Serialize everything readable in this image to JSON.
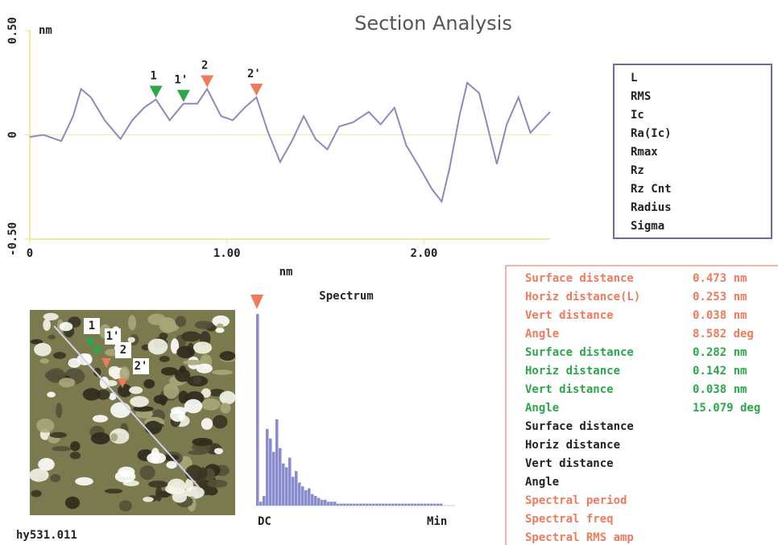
{
  "title": "Section Analysis",
  "chart_data": {
    "type": "line",
    "y_unit": "nm",
    "xlabel": "nm",
    "x": [
      0,
      0.07,
      0.16,
      0.22,
      0.26,
      0.31,
      0.38,
      0.46,
      0.52,
      0.58,
      0.64,
      0.71,
      0.78,
      0.85,
      0.9,
      0.97,
      1.03,
      1.09,
      1.15,
      1.21,
      1.27,
      1.33,
      1.39,
      1.45,
      1.51,
      1.57,
      1.64,
      1.72,
      1.78,
      1.85,
      1.91,
      1.98,
      2.04,
      2.09,
      2.13,
      2.18,
      2.22,
      2.28,
      2.32,
      2.37,
      2.42,
      2.48,
      2.54,
      2.58,
      2.64
    ],
    "series": [
      {
        "color": "#8a8abf",
        "values": [
          -0.01,
          0,
          -0.03,
          0.09,
          0.22,
          0.18,
          0.07,
          -0.02,
          0.07,
          0.13,
          0.17,
          0.07,
          0.15,
          0.15,
          0.22,
          0.09,
          0.07,
          0.13,
          0.18,
          0.01,
          -0.13,
          -0.03,
          0.09,
          -0.02,
          -0.07,
          0.04,
          0.06,
          0.11,
          0.05,
          0.13,
          -0.05,
          -0.16,
          -0.26,
          -0.32,
          -0.16,
          0.09,
          0.25,
          0.2,
          0.05,
          -0.14,
          0.05,
          0.18,
          0.01,
          0.05,
          0.11
        ]
      }
    ],
    "xlim": [
      0,
      2.64
    ],
    "ylim": [
      -0.5,
      0.5
    ],
    "xticks": [
      0,
      {
        "value": 1,
        "label": "1.00"
      },
      {
        "value": 2,
        "label": "2.00"
      }
    ],
    "yticks": [
      {
        "value": -0.5,
        "label": "-0.50"
      },
      0,
      {
        "value": 0.5,
        "label": "0.50"
      }
    ],
    "markers": [
      {
        "label": "1",
        "x": 0.64,
        "color": "#2aa84a"
      },
      {
        "label": "1'",
        "x": 0.78,
        "color": "#2aa84a"
      },
      {
        "label": "2",
        "x": 0.9,
        "color": "#f07a5c"
      },
      {
        "label": "2'",
        "x": 1.15,
        "color": "#f07a5c"
      }
    ]
  },
  "parameters": [
    "L",
    "RMS",
    "Ic",
    "Ra(Ic)",
    "Rmax",
    "Rz",
    "Rz Cnt",
    "Radius",
    "Sigma"
  ],
  "measurements": [
    {
      "label": "Surface distance",
      "value": "0.473 nm",
      "color": "#f07a5c"
    },
    {
      "label": "Horiz distance(L)",
      "value": "0.253 nm",
      "color": "#f07a5c"
    },
    {
      "label": "Vert distance",
      "value": "0.038 nm",
      "color": "#f07a5c"
    },
    {
      "label": "Angle",
      "value": "8.582 deg",
      "color": "#f07a5c"
    },
    {
      "label": "Surface distance",
      "value": "0.282 nm",
      "color": "#2aa84a"
    },
    {
      "label": "Horiz distance",
      "value": "0.142 nm",
      "color": "#2aa84a"
    },
    {
      "label": "Vert distance",
      "value": "0.038 nm",
      "color": "#2aa84a"
    },
    {
      "label": "Angle",
      "value": "15.079 deg",
      "color": "#2aa84a"
    },
    {
      "label": "Surface distance",
      "color": "#222222"
    },
    {
      "label": "Horiz distance",
      "color": "#222222"
    },
    {
      "label": "Vert distance",
      "color": "#222222"
    },
    {
      "label": "Angle",
      "color": "#222222"
    },
    {
      "label": "Spectral period",
      "color": "#f07a5c"
    },
    {
      "label": "Spectral freq",
      "color": "#f07a5c"
    },
    {
      "label": "Spectral RMS amp",
      "color": "#f07a5c"
    }
  ],
  "spectrum": {
    "title": "Spectrum",
    "start_label": "DC",
    "end_label": "Min",
    "color": "#8a8acf",
    "ylim": [
      0,
      100
    ],
    "values": [
      100,
      2,
      5,
      40,
      35,
      28,
      45,
      30,
      22,
      20,
      25,
      15,
      18,
      12,
      10,
      8,
      9,
      6,
      5,
      4,
      3,
      3,
      2,
      2,
      2,
      1,
      1,
      1,
      1,
      1,
      1,
      1,
      1,
      1,
      1,
      1,
      1,
      1,
      1,
      1,
      1,
      1,
      1,
      1,
      1,
      1,
      1,
      1,
      1,
      1,
      1,
      1,
      1,
      1,
      1,
      1,
      1,
      1
    ]
  },
  "image_name": "hy531.011"
}
